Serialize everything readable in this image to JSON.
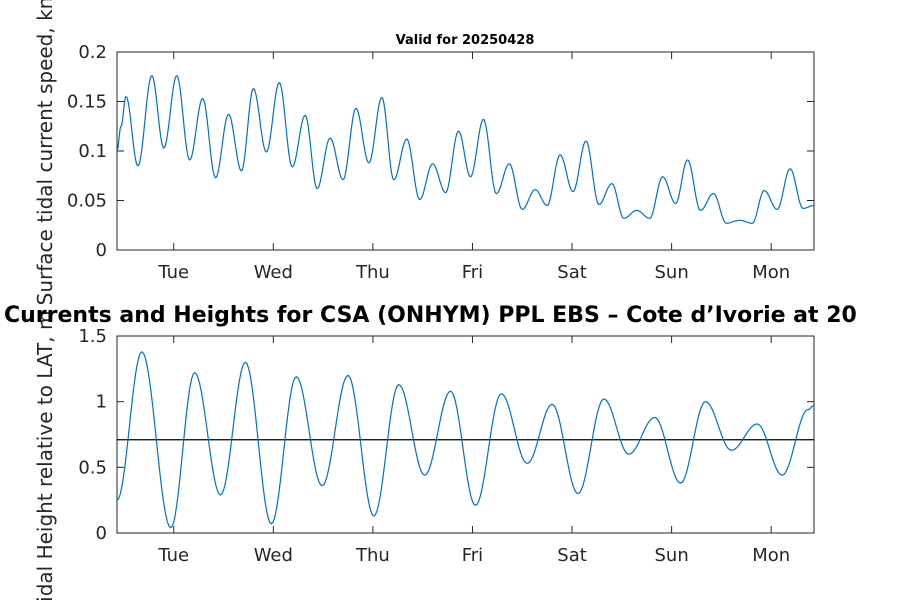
{
  "chart_data": [
    {
      "type": "line",
      "title": "Valid for 20250428",
      "ylabel": "Surface tidal current speed, kn",
      "ylim": [
        0,
        0.2
      ],
      "yticks": [
        "0",
        "0.05",
        "0.1",
        "0.15",
        "0.2"
      ],
      "ytick_values": [
        0,
        0.05,
        0.1,
        0.15,
        0.2
      ],
      "xlim": [
        0,
        7
      ],
      "xticks": [
        "Tue",
        "Wed",
        "Thu",
        "Fri",
        "Sat",
        "Sun",
        "Mon"
      ],
      "xtick_values": [
        0.57,
        1.57,
        2.57,
        3.57,
        4.57,
        5.57,
        6.57
      ],
      "color": "#0072BD",
      "series": [
        {
          "x": [
            0,
            0.04,
            0.09,
            0.21,
            0.35,
            0.47,
            0.6,
            0.73,
            0.86,
            0.99,
            1.12,
            1.25,
            1.37,
            1.5,
            1.63,
            1.76,
            1.89,
            2.01,
            2.14,
            2.27,
            2.4,
            2.53,
            2.66,
            2.78,
            2.91,
            3.04,
            3.17,
            3.3,
            3.43,
            3.55,
            3.68,
            3.81,
            3.94,
            4.07,
            4.2,
            4.32,
            4.45,
            4.58,
            4.71,
            4.84,
            4.97,
            5.09,
            5.22,
            5.35,
            5.48,
            5.61,
            5.73,
            5.86,
            5.99,
            6.12,
            6.25,
            6.38,
            6.5,
            6.63,
            6.76,
            6.89,
            7.0
          ],
          "y": [
            0.1,
            0.125,
            0.155,
            0.085,
            0.176,
            0.103,
            0.176,
            0.091,
            0.153,
            0.073,
            0.137,
            0.08,
            0.163,
            0.099,
            0.169,
            0.084,
            0.136,
            0.062,
            0.113,
            0.071,
            0.143,
            0.088,
            0.154,
            0.071,
            0.112,
            0.051,
            0.087,
            0.058,
            0.12,
            0.074,
            0.132,
            0.057,
            0.087,
            0.041,
            0.061,
            0.045,
            0.096,
            0.059,
            0.11,
            0.046,
            0.067,
            0.032,
            0.04,
            0.032,
            0.074,
            0.047,
            0.091,
            0.04,
            0.057,
            0.027,
            0.03,
            0.027,
            0.06,
            0.041,
            0.082,
            0.042,
            0.045
          ]
        }
      ]
    },
    {
      "type": "line",
      "title": "Currents and Heights for CSA (ONHYM) PPL EBS  – Cote d’Ivorie at 20",
      "ylabel": "Tidal Height relative to LAT, m",
      "ylim": [
        0,
        1.5
      ],
      "yticks": [
        "0",
        "0.5",
        "1",
        "1.5"
      ],
      "ytick_values": [
        0,
        0.5,
        1,
        1.5
      ],
      "xlim": [
        0,
        7
      ],
      "xticks": [
        "Tue",
        "Wed",
        "Thu",
        "Fri",
        "Sat",
        "Sun",
        "Mon"
      ],
      "xtick_values": [
        0.57,
        1.57,
        2.57,
        3.57,
        4.57,
        5.57,
        6.57
      ],
      "color": "#0072BD",
      "reference_line": 0.71,
      "series": [
        {
          "x": [
            0,
            0.25,
            0.54,
            0.78,
            1.04,
            1.29,
            1.55,
            1.8,
            2.06,
            2.32,
            2.58,
            2.83,
            3.09,
            3.35,
            3.6,
            3.86,
            4.12,
            4.37,
            4.63,
            4.89,
            5.14,
            5.4,
            5.66,
            5.91,
            6.17,
            6.43,
            6.68,
            6.94,
            7.0
          ],
          "y": [
            0.25,
            1.38,
            0.04,
            1.22,
            0.29,
            1.3,
            0.07,
            1.19,
            0.36,
            1.2,
            0.13,
            1.13,
            0.44,
            1.08,
            0.21,
            1.06,
            0.53,
            0.98,
            0.3,
            1.02,
            0.6,
            0.88,
            0.38,
            1.0,
            0.63,
            0.83,
            0.44,
            0.94,
            0.97
          ]
        }
      ]
    }
  ]
}
